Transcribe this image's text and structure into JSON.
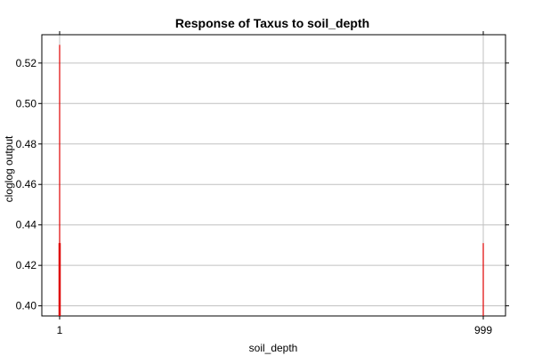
{
  "chart_data": {
    "type": "line",
    "title": "Response of Taxus to soil_depth",
    "xlabel": "soil_depth",
    "ylabel": "cloglog output",
    "x_ticks": [
      1,
      999
    ],
    "y_ticks": [
      0.4,
      0.42,
      0.44,
      0.46,
      0.48,
      0.5,
      0.52
    ],
    "ylim": [
      0.395,
      0.534
    ],
    "grid": true,
    "colors": {
      "series": "#e00000",
      "grid": "#c0c0c0",
      "axis": "#000000"
    },
    "spikes": [
      {
        "x": 1,
        "y_low": 0.395,
        "y_high": 0.529
      },
      {
        "x": 1,
        "y_low": 0.395,
        "y_high": 0.431
      },
      {
        "x": 999,
        "y_low": 0.395,
        "y_high": 0.431
      }
    ]
  }
}
